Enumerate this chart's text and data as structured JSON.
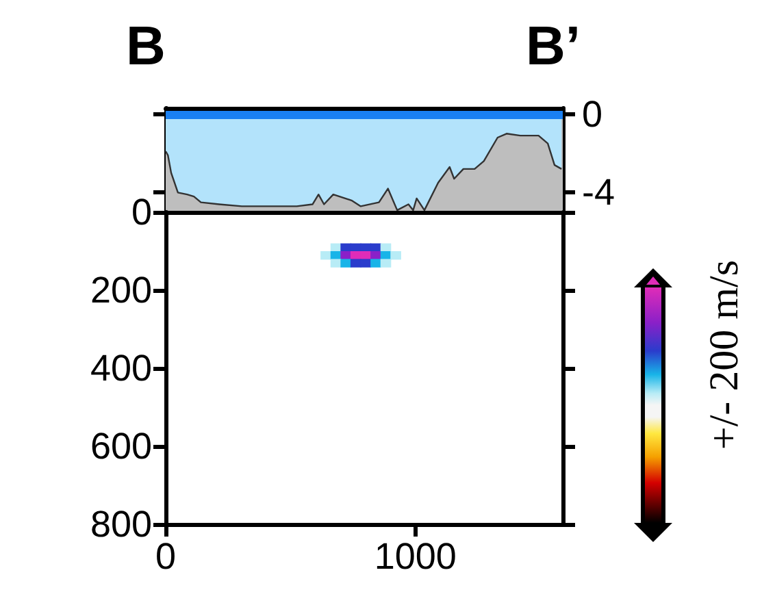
{
  "chart_data": [
    {
      "type": "area",
      "title": "B",
      "annotations": [
        "B’"
      ],
      "x": [
        0,
        9,
        22,
        49,
        86,
        113,
        141,
        214,
        305,
        433,
        525,
        588,
        612,
        634,
        671,
        744,
        781,
        854,
        890,
        927,
        972,
        991,
        1005,
        1036,
        1091,
        1137,
        1155,
        1192,
        1237,
        1274,
        1329,
        1365,
        1420,
        1493,
        1530,
        1557,
        1585
      ],
      "series": [
        {
          "color": "#b3e3fb",
          "values": [
            -1.9,
            -2.1,
            -3.0,
            -4.0,
            -4.1,
            -4.2,
            -4.5,
            -4.6,
            -4.7,
            -4.7,
            -4.7,
            -4.6,
            -4.1,
            -4.6,
            -4.1,
            -4.4,
            -4.7,
            -4.5,
            -3.8,
            -4.9,
            -4.6,
            -4.9,
            -4.3,
            -4.9,
            -3.5,
            -2.7,
            -3.3,
            -2.8,
            -2.8,
            -2.4,
            -1.2,
            -1.0,
            -1.1,
            -1.1,
            -1.5,
            -2.6,
            -2.8
          ]
        }
      ],
      "xlim": [
        0,
        1590
      ],
      "ylim": [
        -5,
        0.3
      ],
      "yticks": [
        0,
        -4
      ],
      "tick_labels": "y",
      "bands": [
        {
          "axis": "y",
          "from": -5,
          "to": 0,
          "color": "#bebebe"
        }
      ],
      "ref_lines": [
        {
          "axis": "y",
          "value": 0,
          "color": "#1a80f2"
        }
      ]
    },
    {
      "type": "scatter",
      "marker": "square",
      "clabel": "+/- 200 m/s",
      "x": [
        680,
        720,
        760,
        800,
        840,
        880,
        640,
        680,
        720,
        760,
        800,
        840,
        880,
        920,
        680,
        720,
        760,
        800,
        840,
        880
      ],
      "values": [
        90,
        90,
        90,
        90,
        90,
        90,
        110,
        110,
        110,
        110,
        110,
        110,
        110,
        110,
        130,
        130,
        130,
        130,
        130,
        130
      ],
      "colors": [
        "#b8ecf6",
        "#2a3ccc",
        "#2a3ccc",
        "#2a3ccc",
        "#2a3ccc",
        "#b8ecf6",
        "#b8ecf6",
        "#18b4e8",
        "#8a20c8",
        "#e02cb8",
        "#e02cb8",
        "#8a20c8",
        "#18b4e8",
        "#b8ecf6",
        "#b8ecf6",
        "#18b4e8",
        "#2a3ccc",
        "#2a3ccc",
        "#18b4e8",
        "#b8ecf6"
      ],
      "xlim": [
        0,
        1590
      ],
      "xticks": [
        0,
        1000
      ],
      "ylim": [
        800,
        0
      ],
      "yticks": [
        0,
        200,
        400,
        600,
        800
      ]
    }
  ]
}
